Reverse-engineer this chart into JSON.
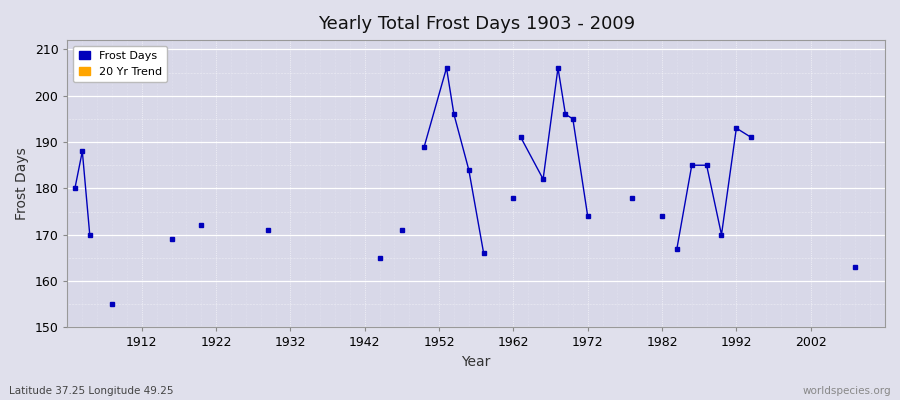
{
  "title": "Yearly Total Frost Days 1903 - 2009",
  "xlabel": "Year",
  "ylabel": "Frost Days",
  "xlim": [
    1902,
    2012
  ],
  "ylim": [
    150,
    212
  ],
  "yticks": [
    150,
    160,
    170,
    180,
    190,
    200,
    210
  ],
  "xticks": [
    1912,
    1922,
    1932,
    1942,
    1952,
    1962,
    1972,
    1982,
    1992,
    2002
  ],
  "line_color": "#0000bb",
  "trend_color": "#FFA500",
  "bg_color": "#e0e0ec",
  "plot_bg": "#d8d8e8",
  "grid_major_color": "#ffffff",
  "grid_minor_color": "#e8e8f4",
  "subtitle": "Latitude 37.25 Longitude 49.25",
  "watermark": "worldspecies.org",
  "frost_days": {
    "years": [
      1903,
      1904,
      1905,
      1908,
      1916,
      1920,
      1929,
      1944,
      1947,
      1950,
      1953,
      1954,
      1956,
      1958,
      1962,
      1963,
      1966,
      1968,
      1969,
      1970,
      1972,
      1978,
      1982,
      1984,
      1986,
      1988,
      1990,
      1992,
      1994,
      2008
    ],
    "values": [
      180,
      188,
      170,
      155,
      169,
      172,
      171,
      165,
      171,
      189,
      206,
      196,
      184,
      166,
      178,
      191,
      182,
      206,
      196,
      195,
      174,
      178,
      174,
      167,
      185,
      185,
      170,
      193,
      191,
      163
    ]
  },
  "segments": [
    [
      [
        1903,
        180
      ],
      [
        1904,
        188
      ],
      [
        1905,
        170
      ]
    ],
    [
      [
        1950,
        189
      ],
      [
        1953,
        206
      ],
      [
        1954,
        196
      ],
      [
        1956,
        184
      ],
      [
        1958,
        166
      ]
    ],
    [
      [
        1963,
        191
      ],
      [
        1966,
        182
      ],
      [
        1968,
        206
      ],
      [
        1969,
        196
      ],
      [
        1970,
        195
      ],
      [
        1972,
        174
      ]
    ],
    [
      [
        1984,
        167
      ],
      [
        1986,
        185
      ],
      [
        1988,
        185
      ],
      [
        1990,
        170
      ],
      [
        1992,
        193
      ],
      [
        1994,
        191
      ]
    ]
  ],
  "isolated": [
    [
      1908,
      155
    ],
    [
      1916,
      169
    ],
    [
      1920,
      172
    ],
    [
      1929,
      171
    ],
    [
      1944,
      165
    ],
    [
      1947,
      171
    ],
    [
      1962,
      178
    ],
    [
      1978,
      178
    ],
    [
      1982,
      174
    ],
    [
      2008,
      163
    ]
  ]
}
